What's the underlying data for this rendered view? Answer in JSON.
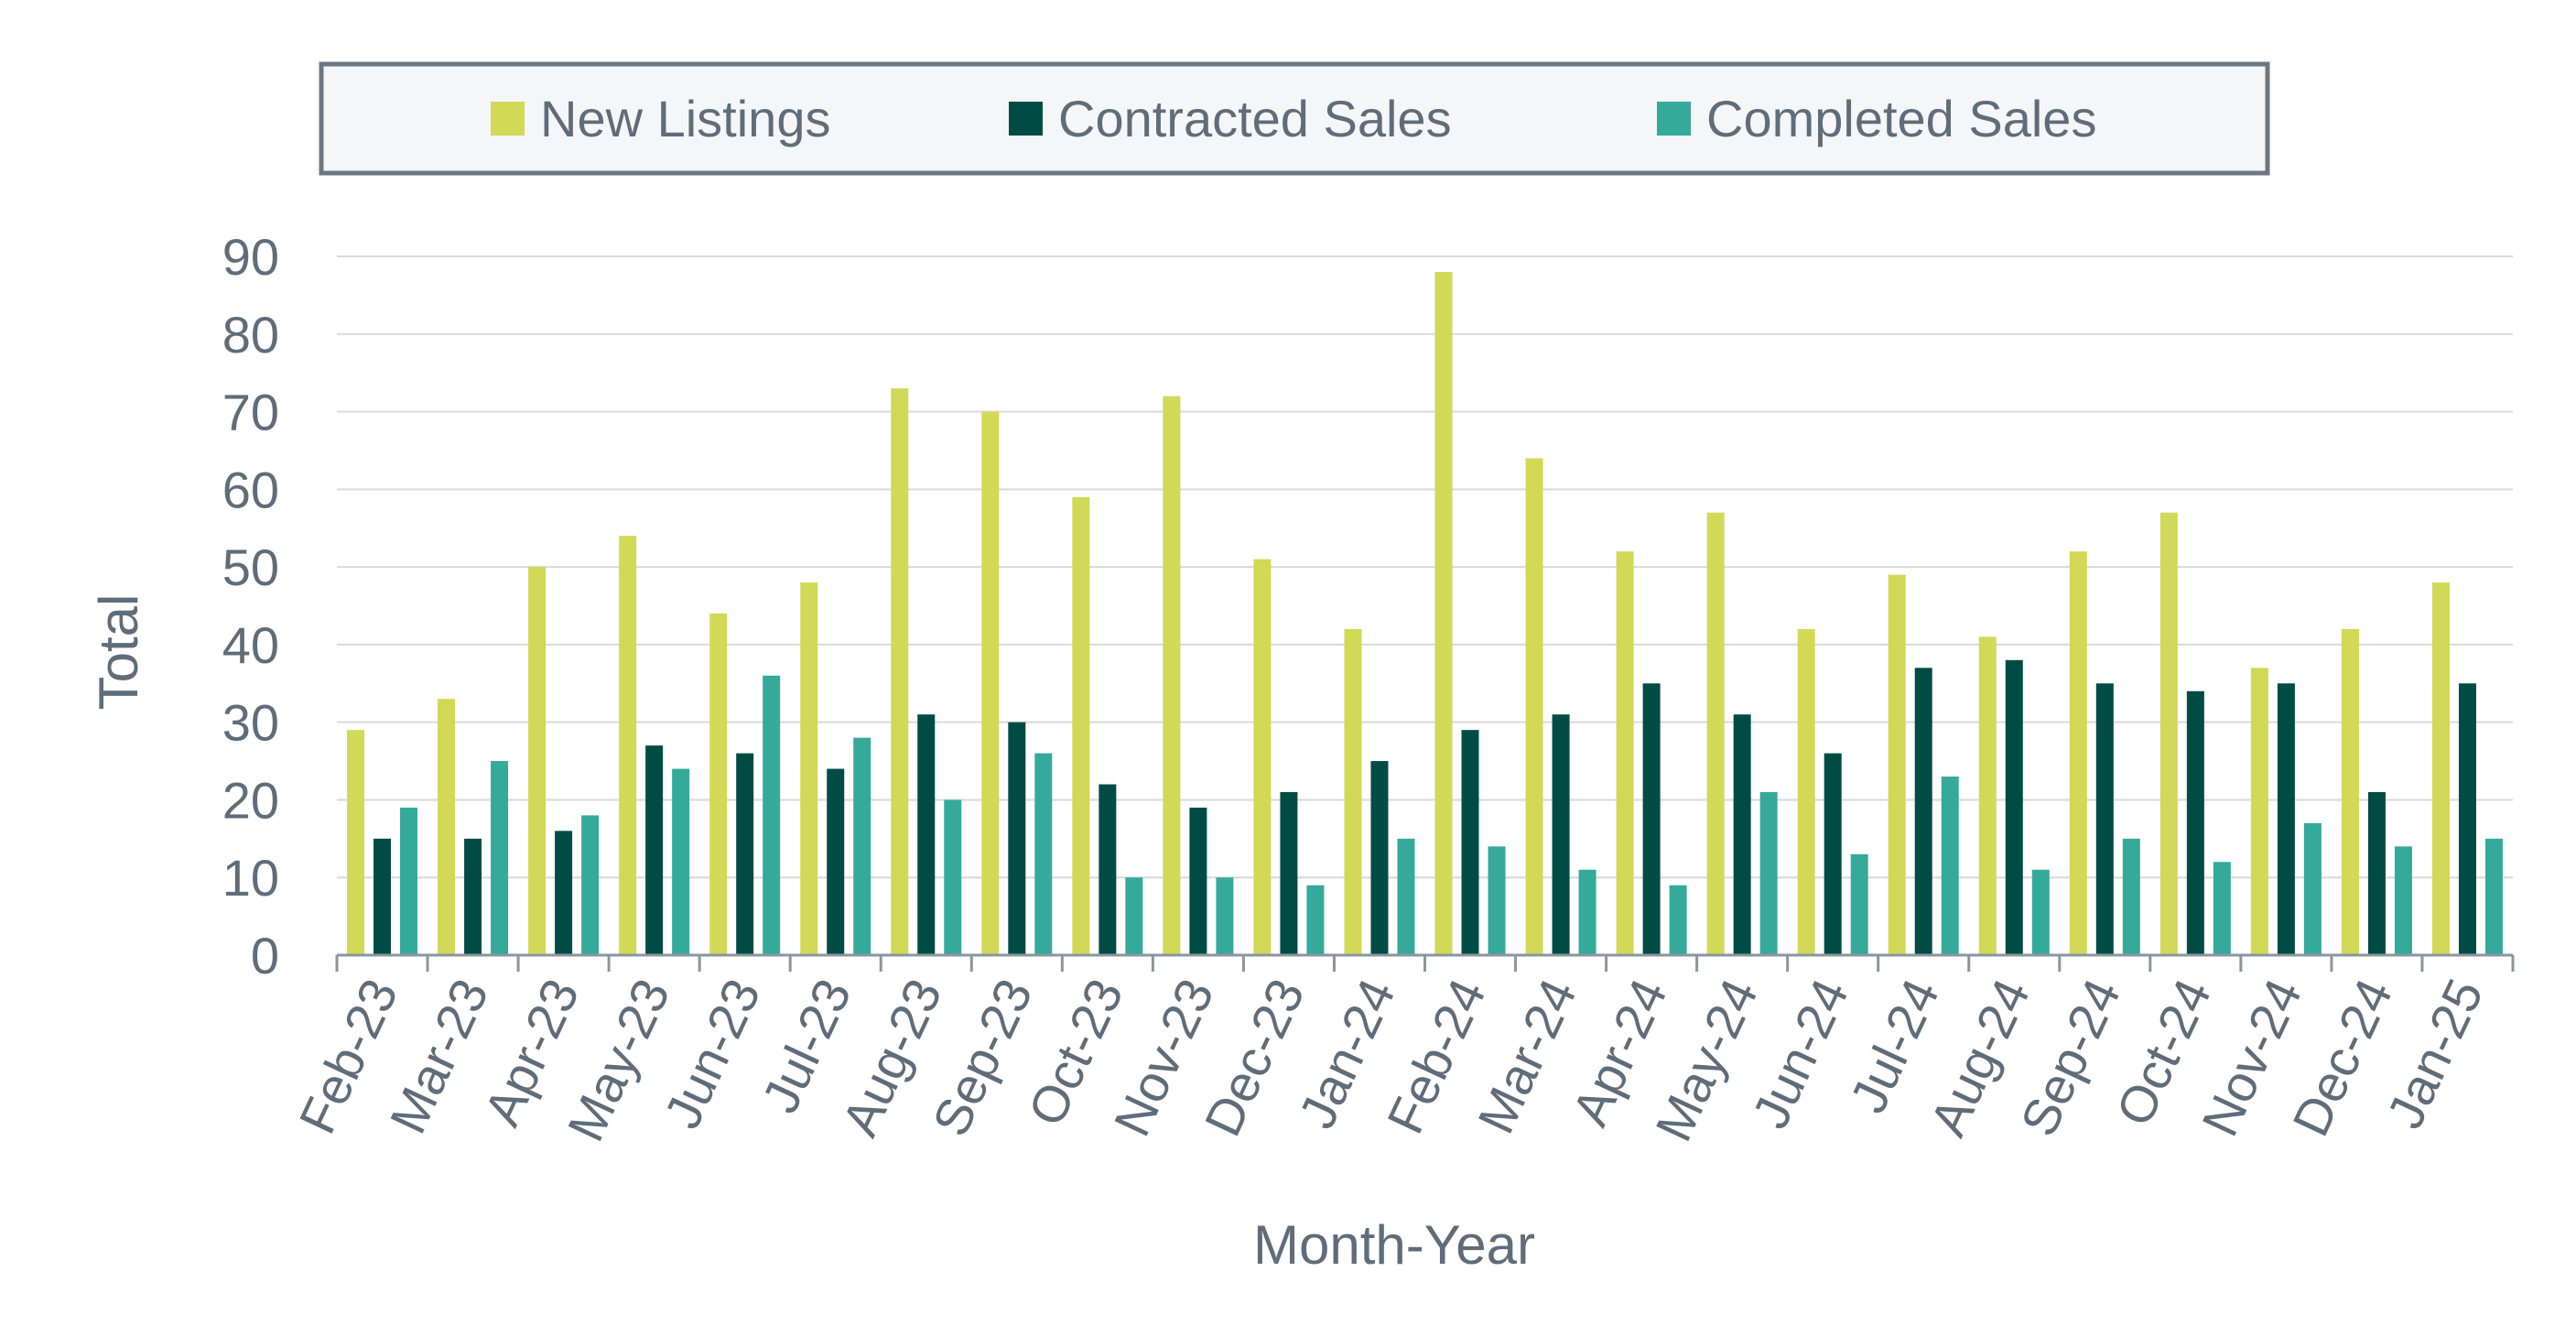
{
  "chart_data": {
    "type": "bar",
    "xlabel": "Month-Year",
    "ylabel": "Total",
    "ylim": [
      0,
      90
    ],
    "yticks": [
      0,
      10,
      20,
      30,
      40,
      50,
      60,
      70,
      80,
      90
    ],
    "grid": true,
    "legend_position": "top",
    "categories": [
      "Feb-23",
      "Mar-23",
      "Apr-23",
      "May-23",
      "Jun-23",
      "Jul-23",
      "Aug-23",
      "Sep-23",
      "Oct-23",
      "Nov-23",
      "Dec-23",
      "Jan-24",
      "Feb-24",
      "Mar-24",
      "Apr-24",
      "May-24",
      "Jun-24",
      "Jul-24",
      "Aug-24",
      "Sep-24",
      "Oct-24",
      "Nov-24",
      "Dec-24",
      "Jan-25"
    ],
    "series": [
      {
        "name": "New Listings",
        "color": "#d1d957",
        "values": [
          29,
          33,
          50,
          54,
          44,
          48,
          73,
          70,
          59,
          72,
          51,
          42,
          88,
          64,
          52,
          57,
          42,
          49,
          41,
          52,
          57,
          37,
          42,
          48
        ]
      },
      {
        "name": "Contracted Sales",
        "color": "#004c45",
        "values": [
          15,
          15,
          16,
          27,
          26,
          24,
          31,
          30,
          22,
          19,
          21,
          25,
          29,
          31,
          35,
          31,
          26,
          37,
          38,
          35,
          34,
          35,
          21,
          35
        ]
      },
      {
        "name": "Completed Sales",
        "color": "#35aa9b",
        "values": [
          19,
          25,
          18,
          24,
          36,
          28,
          20,
          26,
          10,
          10,
          9,
          15,
          14,
          11,
          9,
          21,
          13,
          23,
          11,
          15,
          12,
          17,
          14,
          15
        ]
      }
    ]
  }
}
